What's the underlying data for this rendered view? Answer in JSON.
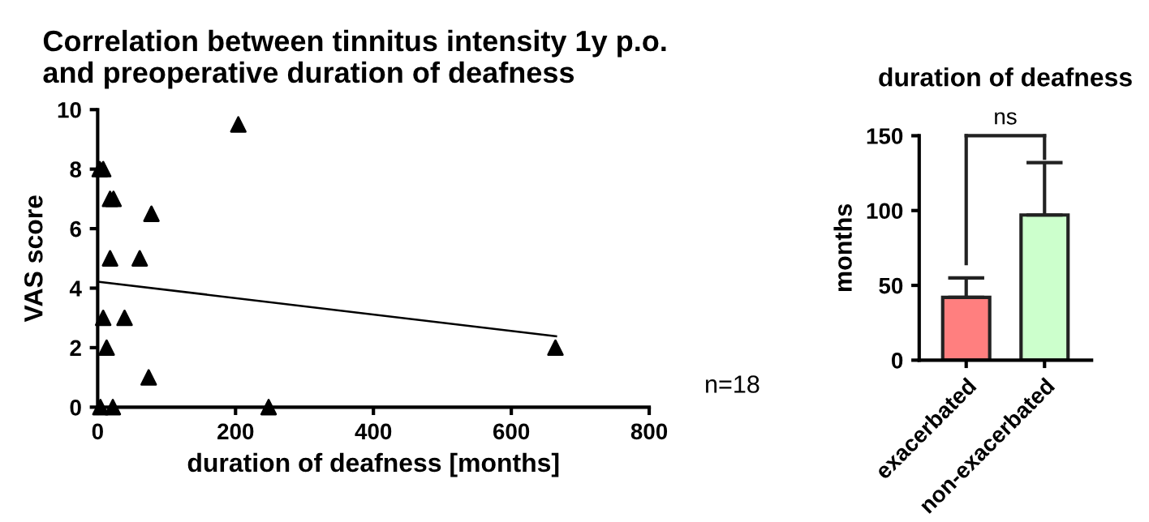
{
  "chart_data": [
    {
      "type": "scatter",
      "title": "Correlation between tinnitus intensity 1y p.o.\nand preoperative duration of deafness",
      "xlabel": "duration of deafness [months]",
      "ylabel": "VAS score",
      "xlim": [
        0,
        800
      ],
      "xticks": [
        0,
        200,
        400,
        600,
        800
      ],
      "ylim": [
        0,
        10
      ],
      "yticks": [
        0,
        2,
        4,
        6,
        8,
        10
      ],
      "grid": false,
      "legend": false,
      "marker": "triangle",
      "annotations": [
        "n=18"
      ],
      "series": [
        {
          "type": "scatter",
          "color": "#000000",
          "x": [
            3,
            8,
            18,
            23,
            18,
            61,
            78,
            8,
            39,
            13,
            74,
            204,
            248,
            664,
            4,
            22
          ],
          "values": [
            8,
            8,
            7,
            7,
            5,
            5,
            6.5,
            3,
            3,
            2,
            1,
            9.5,
            0,
            2,
            0,
            0
          ]
        },
        {
          "type": "line",
          "color": "#000000",
          "marker": "none",
          "x": [
            0,
            665
          ],
          "values": [
            4.22,
            2.38
          ]
        }
      ]
    },
    {
      "type": "bar",
      "title": "duration of deafness",
      "ylabel": "months",
      "categories": [
        "exacerbated",
        "non-exacerbated"
      ],
      "ylim": [
        0,
        150
      ],
      "yticks": [
        0,
        50,
        100,
        150
      ],
      "grid": false,
      "legend": false,
      "annotations": [
        "ns"
      ],
      "series": [
        {
          "colors": [
            "#ff7f7f",
            "#ccffcc"
          ],
          "values": [
            42,
            97
          ],
          "errors": [
            [
              42,
              55
            ],
            [
              97,
              132
            ]
          ]
        }
      ]
    }
  ]
}
